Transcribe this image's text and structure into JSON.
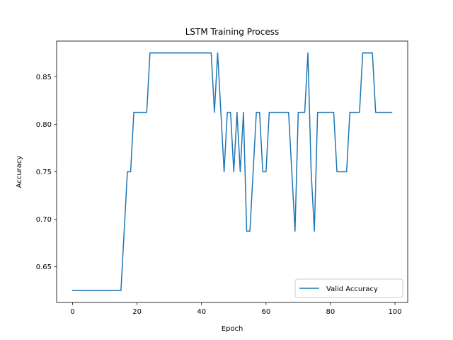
{
  "chart_data": {
    "type": "line",
    "title": "LSTM Training Process",
    "xlabel": "Epoch",
    "ylabel": "Accuracy",
    "xlim": [
      -4.95,
      103.95
    ],
    "ylim": [
      0.6125,
      0.8875
    ],
    "xticks": [
      0,
      20,
      40,
      60,
      80,
      100
    ],
    "xtick_labels": [
      "0",
      "20",
      "40",
      "60",
      "80",
      "100"
    ],
    "yticks": [
      0.65,
      0.7,
      0.75,
      0.8,
      0.85
    ],
    "ytick_labels": [
      "0.65",
      "0.70",
      "0.75",
      "0.80",
      "0.85"
    ],
    "grid": false,
    "legend_position": "lower-right",
    "series": [
      {
        "name": "Valid Accuracy",
        "color": "#1f77b4",
        "x": [
          0,
          1,
          2,
          3,
          4,
          5,
          6,
          7,
          8,
          9,
          10,
          11,
          12,
          13,
          14,
          15,
          16,
          17,
          18,
          19,
          20,
          21,
          22,
          23,
          24,
          25,
          26,
          27,
          28,
          29,
          30,
          31,
          32,
          33,
          34,
          35,
          36,
          37,
          38,
          39,
          40,
          41,
          42,
          43,
          44,
          45,
          46,
          47,
          48,
          49,
          50,
          51,
          52,
          53,
          54,
          55,
          56,
          57,
          58,
          59,
          60,
          61,
          62,
          63,
          64,
          65,
          66,
          67,
          68,
          69,
          70,
          71,
          72,
          73,
          74,
          75,
          76,
          77,
          78,
          79,
          80,
          81,
          82,
          83,
          84,
          85,
          86,
          87,
          88,
          89,
          90,
          91,
          92,
          93,
          94,
          95,
          96,
          97,
          98,
          99
        ],
        "y": [
          0.625,
          0.625,
          0.625,
          0.625,
          0.625,
          0.625,
          0.625,
          0.625,
          0.625,
          0.625,
          0.625,
          0.625,
          0.625,
          0.625,
          0.625,
          0.625,
          0.6875,
          0.75,
          0.75,
          0.8125,
          0.8125,
          0.8125,
          0.8125,
          0.8125,
          0.875,
          0.875,
          0.875,
          0.875,
          0.875,
          0.875,
          0.875,
          0.875,
          0.875,
          0.875,
          0.875,
          0.875,
          0.875,
          0.875,
          0.875,
          0.875,
          0.875,
          0.875,
          0.875,
          0.875,
          0.8125,
          0.875,
          0.8125,
          0.75,
          0.8125,
          0.8125,
          0.75,
          0.8125,
          0.75,
          0.8125,
          0.6875,
          0.6875,
          0.75,
          0.8125,
          0.8125,
          0.75,
          0.75,
          0.8125,
          0.8125,
          0.8125,
          0.8125,
          0.8125,
          0.8125,
          0.8125,
          0.75,
          0.6875,
          0.8125,
          0.8125,
          0.8125,
          0.875,
          0.75,
          0.6875,
          0.8125,
          0.8125,
          0.8125,
          0.8125,
          0.8125,
          0.8125,
          0.75,
          0.75,
          0.75,
          0.75,
          0.8125,
          0.8125,
          0.8125,
          0.8125,
          0.875,
          0.875,
          0.875,
          0.875,
          0.8125,
          0.8125,
          0.8125,
          0.8125,
          0.8125,
          0.8125
        ]
      }
    ]
  }
}
